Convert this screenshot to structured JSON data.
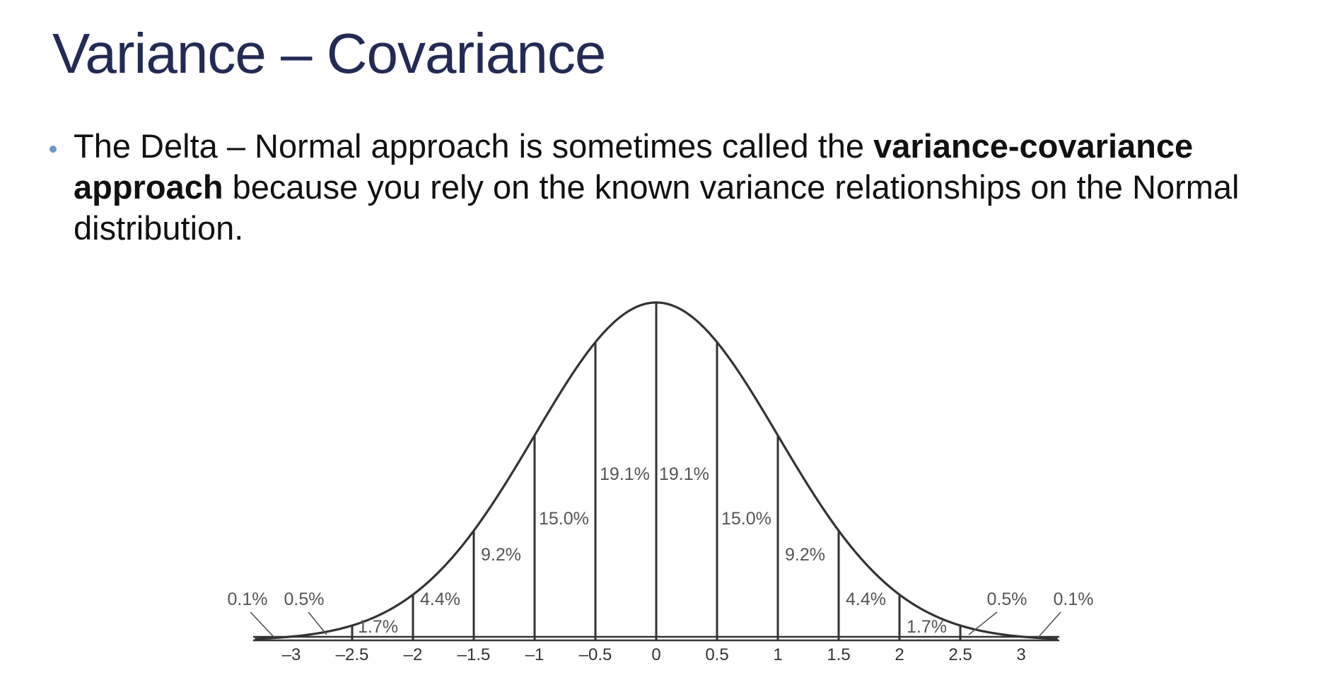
{
  "slide": {
    "title": "Variance – Covariance",
    "bullet": {
      "part1": "The Delta – Normal approach is sometimes called the ",
      "bold": "variance-covariance approach",
      "part2": " because you rely on the known variance relationships on the Normal distribution."
    }
  },
  "colors": {
    "title": "#232a55",
    "bullet": "#6e97c8",
    "curve": "#333333",
    "label": "#555555"
  },
  "chart_data": {
    "type": "area",
    "title": "",
    "xlabel": "",
    "ylabel": "",
    "x_ticks": [
      {
        "v": -3,
        "label": "–3"
      },
      {
        "v": -2.5,
        "label": "–2.5"
      },
      {
        "v": -2,
        "label": "–2"
      },
      {
        "v": -1.5,
        "label": "–1.5"
      },
      {
        "v": -1,
        "label": "–1"
      },
      {
        "v": -0.5,
        "label": "–0.5"
      },
      {
        "v": 0,
        "label": "0"
      },
      {
        "v": 0.5,
        "label": "0.5"
      },
      {
        "v": 1,
        "label": "1"
      },
      {
        "v": 1.5,
        "label": "1.5"
      },
      {
        "v": 2,
        "label": "2"
      },
      {
        "v": 2.5,
        "label": "2.5"
      },
      {
        "v": 3,
        "label": "3"
      }
    ],
    "xlim": [
      -3.3,
      3.3
    ],
    "dividers": [
      -2.5,
      -2,
      -1.5,
      -1,
      -0.5,
      0,
      0.5,
      1,
      1.5,
      2,
      2.5
    ],
    "regions": [
      {
        "from": -3.3,
        "to": -3,
        "label": "0.1%"
      },
      {
        "from": -3,
        "to": -2.5,
        "label": "0.5%"
      },
      {
        "from": -2.5,
        "to": -2,
        "label": "1.7%"
      },
      {
        "from": -2,
        "to": -1.5,
        "label": "4.4%"
      },
      {
        "from": -1.5,
        "to": -1,
        "label": "9.2%"
      },
      {
        "from": -1,
        "to": -0.5,
        "label": "15.0%"
      },
      {
        "from": -0.5,
        "to": 0,
        "label": "19.1%"
      },
      {
        "from": 0,
        "to": 0.5,
        "label": "19.1%"
      },
      {
        "from": 0.5,
        "to": 1,
        "label": "15.0%"
      },
      {
        "from": 1,
        "to": 1.5,
        "label": "9.2%"
      },
      {
        "from": 1.5,
        "to": 2,
        "label": "4.4%"
      },
      {
        "from": 2,
        "to": 2.5,
        "label": "1.7%"
      },
      {
        "from": 2.5,
        "to": 3,
        "label": "0.5%"
      },
      {
        "from": 3,
        "to": 3.3,
        "label": "0.1%"
      }
    ]
  }
}
